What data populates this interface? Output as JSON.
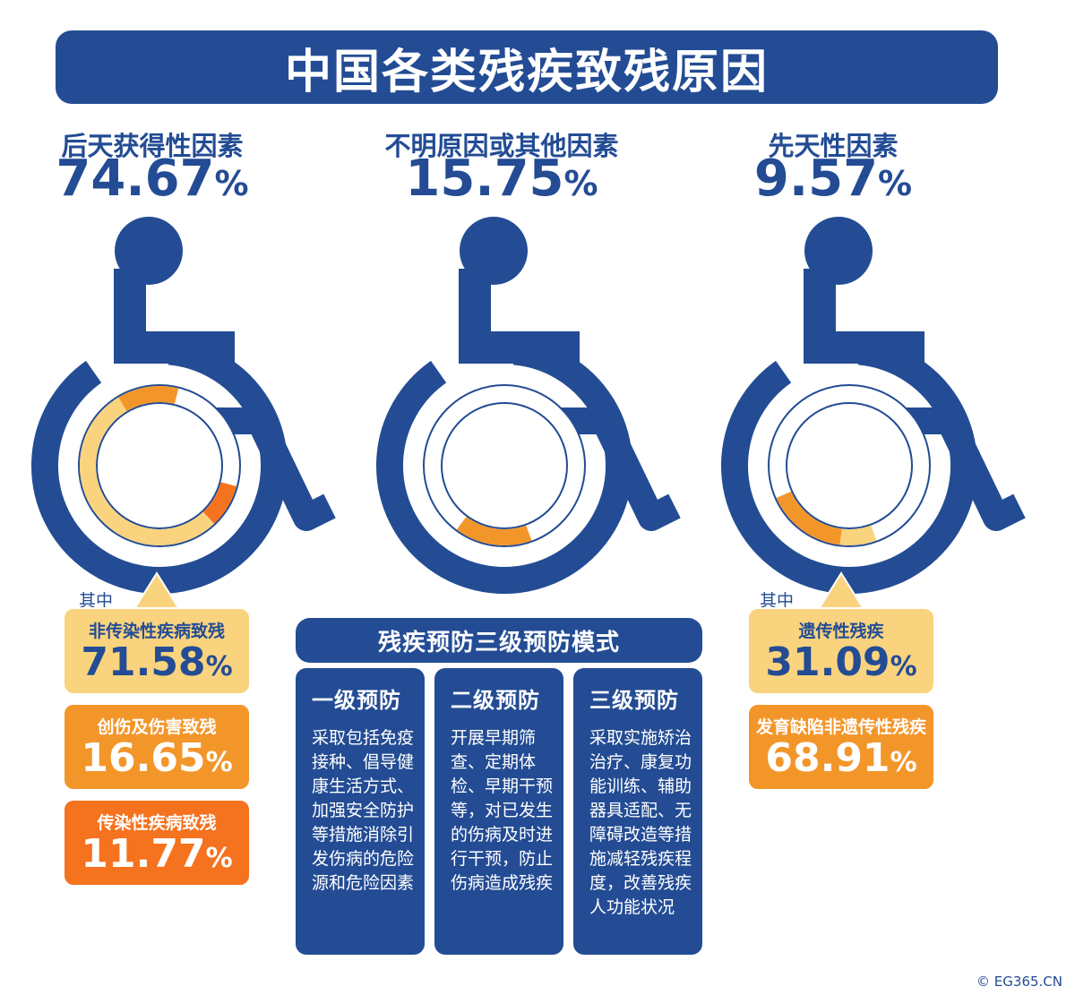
{
  "title": "中国各类残疾致残原因",
  "chart_data": {
    "type": "pie",
    "title": "中国各类残疾致残原因",
    "categories": [
      "后天获得性因素",
      "不明原因或其他因素",
      "先天性因素"
    ],
    "values": [
      74.67,
      15.75,
      9.57
    ],
    "unit": "%",
    "breakdowns": [
      {
        "parent": "后天获得性因素",
        "intro": "其中",
        "items": [
          {
            "label": "非传染性疾病致残",
            "value": 71.58,
            "color": "#f9d37e"
          },
          {
            "label": "创伤及伤害致残",
            "value": 16.65,
            "color": "#f3962a"
          },
          {
            "label": "传染性疾病致残",
            "value": 11.77,
            "color": "#f5721e"
          }
        ]
      },
      {
        "parent": "先天性因素",
        "intro": "其中",
        "items": [
          {
            "label": "遗传性残疾",
            "value": 31.09,
            "color": "#f9d37e"
          },
          {
            "label": "发育缺陷非遗传性残疾",
            "value": 68.91,
            "color": "#f3962a"
          }
        ]
      }
    ]
  },
  "categories_display": [
    {
      "label": "后天获得性因素",
      "pct": "74.67",
      "sign": "%"
    },
    {
      "label": "不明原因或其他因素",
      "pct": "15.75",
      "sign": "%"
    },
    {
      "label": "先天性因素",
      "pct": "9.57",
      "sign": "%"
    }
  ],
  "callouts_left": {
    "intro": "其中",
    "items": [
      {
        "label": "非传染性疾病致残",
        "pct": "71.58",
        "sign": "%"
      },
      {
        "label": "创伤及伤害致残",
        "pct": "16.65",
        "sign": "%"
      },
      {
        "label": "传染性疾病致残",
        "pct": "11.77",
        "sign": "%"
      }
    ]
  },
  "callouts_right": {
    "intro": "其中",
    "items": [
      {
        "label": "遗传性残疾",
        "pct": "31.09",
        "sign": "%"
      },
      {
        "label": "发育缺陷非遗传性残疾",
        "pct": "68.91",
        "sign": "%"
      }
    ]
  },
  "prevention": {
    "title": "残疾预防三级预防模式",
    "levels": [
      {
        "heading": "一级预防",
        "body": "采取包括免疫接种、倡导健康生活方式、加强安全防护等措施消除引发伤病的危险源和危险因素"
      },
      {
        "heading": "二级预防",
        "body": "开展早期筛查、定期体检、早期干预等，对已发生的伤病及时进行干预，防止伤病造成残疾"
      },
      {
        "heading": "三级预防",
        "body": "采取实施矫治治疗、康复功能训练、辅助器具适配、无障碍改造等措施减轻残疾程度，改善残疾人功能状况"
      }
    ]
  },
  "colors": {
    "navy": "#234c94",
    "light_orange": "#f9d37e",
    "orange": "#f3962a",
    "dark_orange": "#f5721e"
  },
  "icons": [
    "wheelchair-icon",
    "copyright-icon"
  ],
  "copyright": "© EG365.CN"
}
